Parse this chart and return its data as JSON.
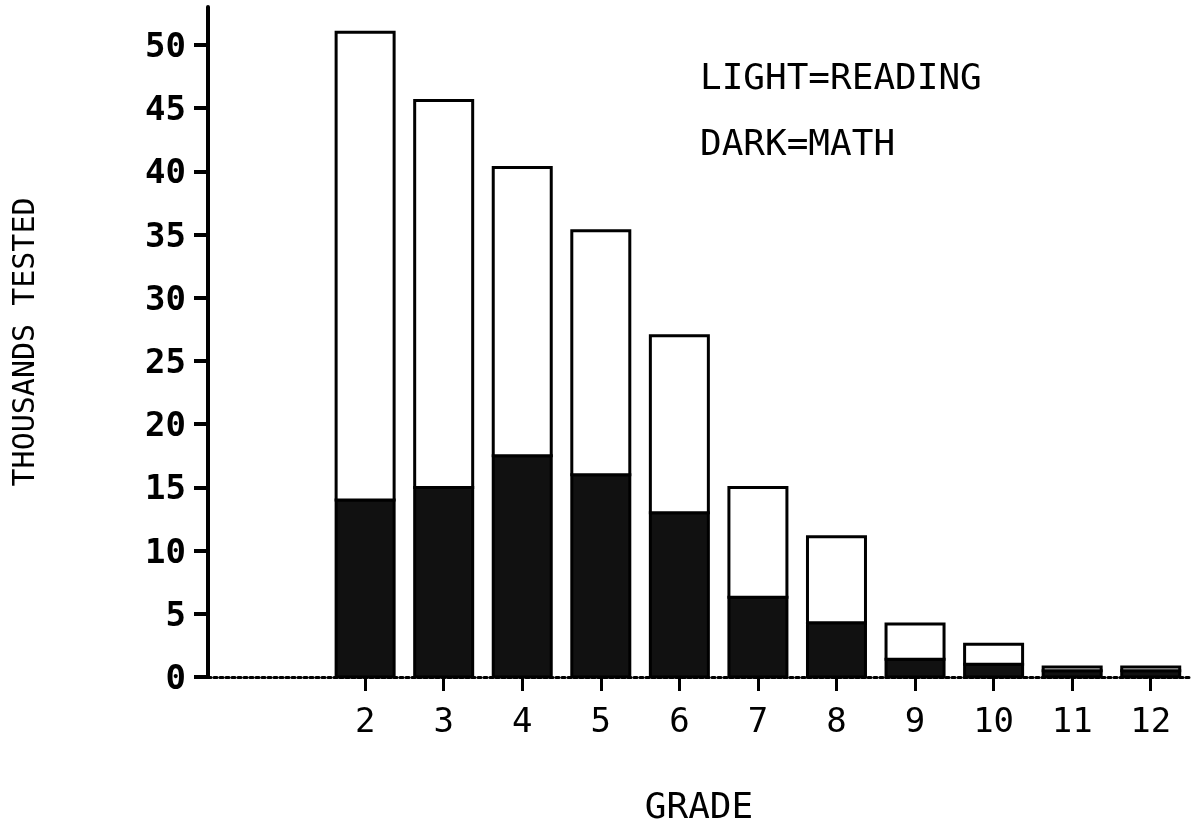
{
  "chart_data": {
    "type": "bar",
    "stacked": true,
    "xlabel": "GRADE",
    "ylabel": "THOUSANDS TESTED",
    "annotations": [
      "LIGHT=READING",
      "DARK=MATH"
    ],
    "x": [
      2,
      3,
      4,
      5,
      6,
      7,
      8,
      9,
      10,
      11,
      12
    ],
    "xlim": [
      0,
      12.5
    ],
    "xticks": [
      2,
      3,
      4,
      5,
      6,
      7,
      8,
      9,
      10,
      11,
      12
    ],
    "ylim": [
      0,
      53
    ],
    "yticks": [
      0,
      5,
      10,
      15,
      20,
      25,
      30,
      35,
      40,
      45,
      50
    ],
    "series": [
      {
        "color": "#111111",
        "values": [
          14,
          15,
          17.5,
          16,
          13,
          6.3,
          4.3,
          1.4,
          1,
          0.5,
          0.5
        ]
      },
      {
        "color": "#ffffff",
        "values": [
          37,
          30.6,
          22.8,
          19.3,
          14,
          8.7,
          6.8,
          2.8,
          1.6,
          0.3,
          0.3
        ]
      }
    ],
    "grid": false
  }
}
